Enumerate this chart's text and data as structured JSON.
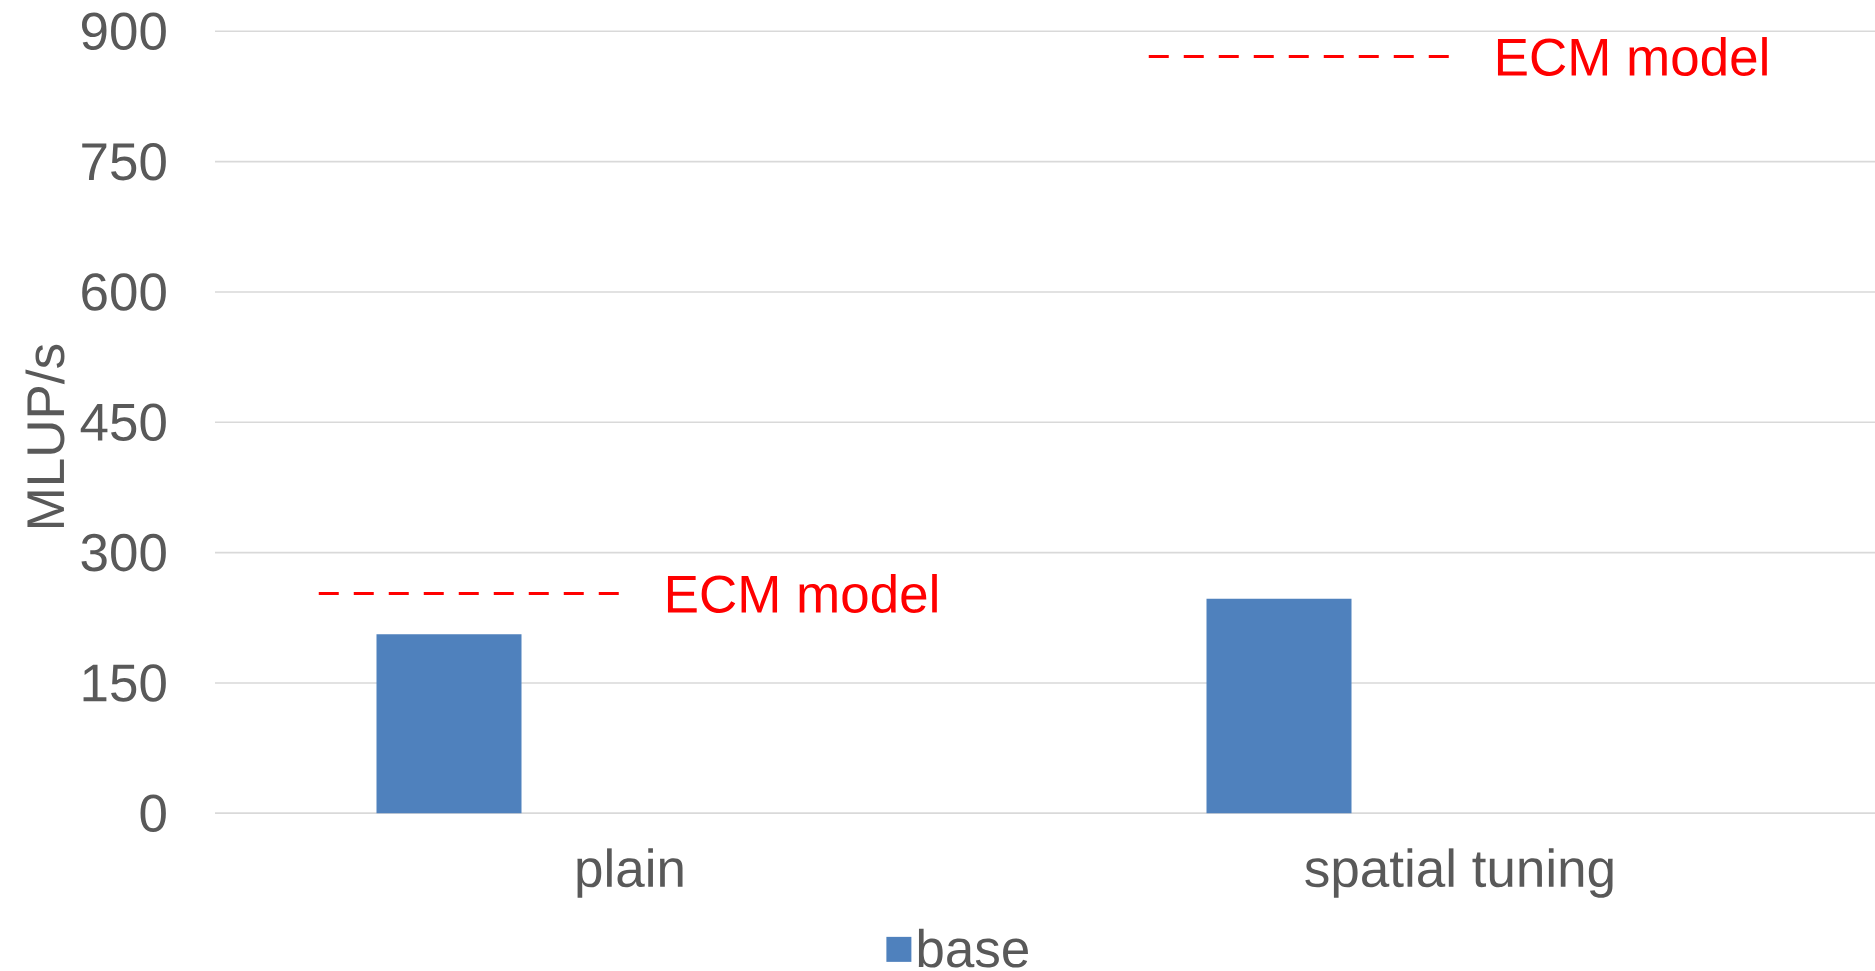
{
  "chart_data": {
    "type": "bar",
    "categories": [
      "plain",
      "spatial tuning"
    ],
    "series": [
      {
        "name": "base",
        "color": "#4f81bd",
        "values": [
          206,
          247
        ]
      }
    ],
    "ylabel": "MLUP/s",
    "ylim": [
      0,
      900
    ],
    "yticks": [
      0,
      150,
      300,
      450,
      600,
      750,
      900
    ],
    "grid": "y",
    "legend": "bottom",
    "ref_lines": [
      {
        "axis": "y",
        "value": 253,
        "label": "ECM model",
        "color": "#ff0000",
        "line_style": "dashed"
      },
      {
        "axis": "y",
        "value": 871,
        "label": "ECM model",
        "color": "#ff0000",
        "line_style": "dashed"
      }
    ]
  }
}
